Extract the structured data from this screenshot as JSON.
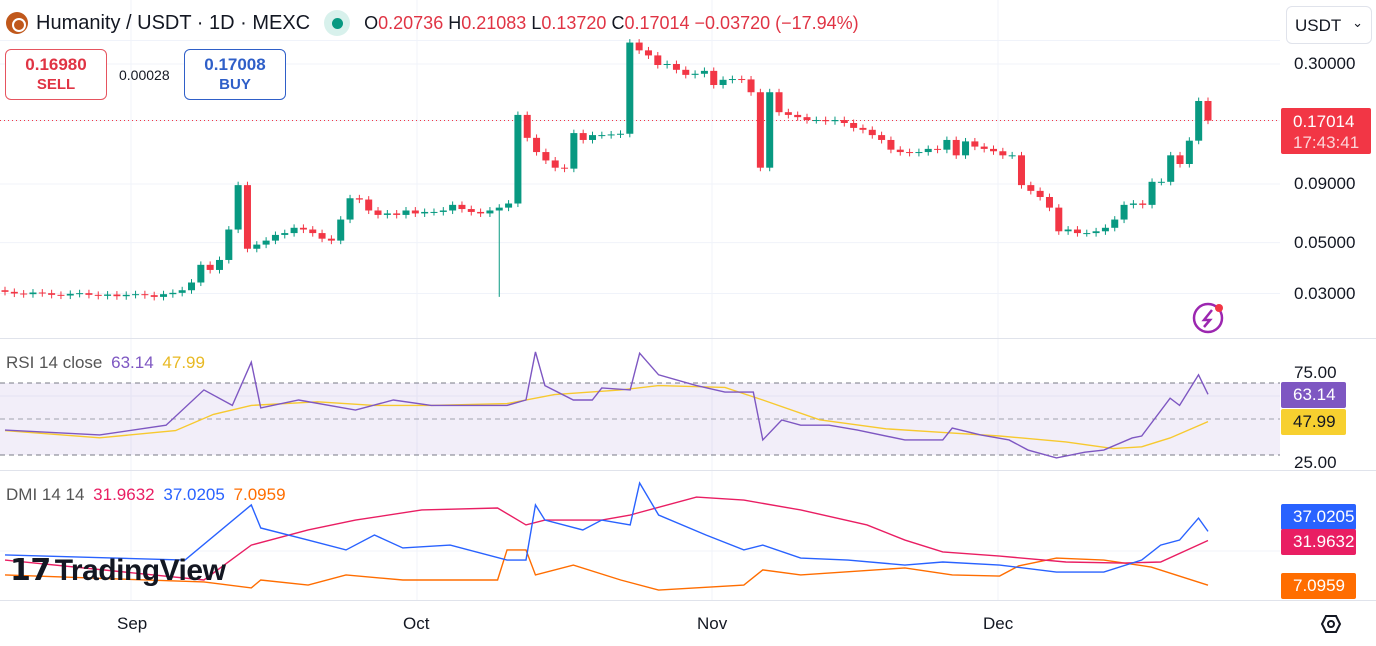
{
  "header": {
    "symbol": "Humanity / USDT · 1D · MEXC",
    "o_label": "O",
    "o": "0.20736",
    "h_label": "H",
    "h": "0.21083",
    "l_label": "L",
    "l": "0.13720",
    "c_label": "C",
    "c": "0.17014",
    "change": "−0.03720 (−17.94%)"
  },
  "trade": {
    "sell_price": "0.16980",
    "sell_label": "SELL",
    "spread": "0.00028",
    "buy_price": "0.17008",
    "buy_label": "BUY"
  },
  "currency_select": "USDT",
  "price_axis": [
    "0.30000",
    "0.09000",
    "0.05000",
    "0.03000"
  ],
  "last_price": {
    "price": "0.17014",
    "countdown": "17:43:41"
  },
  "rsi": {
    "label": "RSI 14 close",
    "value": "63.14",
    "ma": "47.99",
    "axis": [
      "75.00",
      "25.00"
    ]
  },
  "dmi": {
    "label": "DMI 14 14",
    "v1": "31.9632",
    "v2": "37.0205",
    "v3": "7.0959"
  },
  "time_axis": [
    "Sep",
    "Oct",
    "Nov",
    "Dec"
  ],
  "watermark": "TradingView",
  "colors": {
    "up": "#089981",
    "down": "#f23645",
    "rsi": "#7e57c2",
    "rsi_ma": "#f7c92f",
    "dmi1": "#e91e63",
    "dmi2": "#2962ff",
    "dmi3": "#ff6d00"
  },
  "chart_data": {
    "type": "candlestick",
    "title": "Humanity / USDT · 1D · MEXC",
    "y_scale": "log",
    "ylim": [
      0.022,
      0.42
    ],
    "first_open": 0.031,
    "closes": [
      0.0305,
      0.03,
      0.0298,
      0.0303,
      0.0301,
      0.0296,
      0.0294,
      0.0299,
      0.0301,
      0.0296,
      0.0293,
      0.0297,
      0.0292,
      0.0296,
      0.0298,
      0.0295,
      0.029,
      0.0298,
      0.0302,
      0.031,
      0.0335,
      0.04,
      0.038,
      0.042,
      0.057,
      0.089,
      0.047,
      0.049,
      0.051,
      0.054,
      0.055,
      0.058,
      0.057,
      0.055,
      0.052,
      0.051,
      0.063,
      0.078,
      0.077,
      0.069,
      0.066,
      0.067,
      0.066,
      0.069,
      0.067,
      0.068,
      0.068,
      0.069,
      0.073,
      0.07,
      0.068,
      0.067,
      0.069,
      0.071,
      0.074,
      0.18,
      0.143,
      0.124,
      0.114,
      0.106,
      0.105,
      0.15,
      0.14,
      0.147,
      0.147,
      0.148,
      0.149,
      0.372,
      0.344,
      0.327,
      0.297,
      0.3,
      0.283,
      0.269,
      0.272,
      0.28,
      0.243,
      0.256,
      0.258,
      0.257,
      0.226,
      0.106,
      0.226,
      0.185,
      0.18,
      0.176,
      0.171,
      0.171,
      0.169,
      0.171,
      0.166,
      0.158,
      0.155,
      0.147,
      0.14,
      0.127,
      0.124,
      0.123,
      0.124,
      0.128,
      0.127,
      0.14,
      0.12,
      0.138,
      0.131,
      0.128,
      0.125,
      0.12,
      0.12,
      0.089,
      0.084,
      0.079,
      0.071,
      0.056,
      0.057,
      0.055,
      0.055,
      0.056,
      0.058,
      0.063,
      0.073,
      0.074,
      0.073,
      0.092,
      0.092,
      0.12,
      0.11,
      0.139,
      0.207,
      0.17
    ],
    "x_labels": [
      "Sep",
      "Oct",
      "Nov",
      "Dec"
    ],
    "rsi": [
      [
        0,
        43.3
      ],
      [
        10,
        40.6
      ],
      [
        17,
        46
      ],
      [
        21,
        65.6
      ],
      [
        24,
        57
      ],
      [
        26,
        81
      ],
      [
        27,
        55.6
      ],
      [
        31,
        60
      ],
      [
        37,
        54.4
      ],
      [
        41,
        60
      ],
      [
        45,
        57
      ],
      [
        53,
        57
      ],
      [
        55,
        60
      ],
      [
        56,
        86.7
      ],
      [
        57,
        68
      ],
      [
        60,
        60
      ],
      [
        62,
        60
      ],
      [
        63,
        66.7
      ],
      [
        66,
        65.6
      ],
      [
        67,
        86
      ],
      [
        69,
        74
      ],
      [
        73,
        68
      ],
      [
        76,
        64.4
      ],
      [
        79,
        64.4
      ],
      [
        80,
        37.8
      ],
      [
        82,
        48.9
      ],
      [
        84,
        46
      ],
      [
        87,
        46
      ],
      [
        90,
        43.3
      ],
      [
        95,
        37.8
      ],
      [
        99,
        37.8
      ],
      [
        100,
        44.4
      ],
      [
        103,
        40.6
      ],
      [
        106,
        37.8
      ],
      [
        108,
        32.2
      ],
      [
        111,
        27.8
      ],
      [
        114,
        31
      ],
      [
        116,
        32.2
      ],
      [
        119,
        38.9
      ],
      [
        120,
        40
      ],
      [
        123,
        61
      ],
      [
        124,
        57
      ],
      [
        126,
        74
      ],
      [
        127,
        63.14
      ]
    ],
    "rsi_ma": [
      [
        0,
        43
      ],
      [
        10,
        39
      ],
      [
        18,
        43
      ],
      [
        22,
        52
      ],
      [
        26,
        57
      ],
      [
        33,
        59
      ],
      [
        39,
        57
      ],
      [
        45,
        57
      ],
      [
        53,
        58
      ],
      [
        58,
        63
      ],
      [
        65,
        65.6
      ],
      [
        69,
        68
      ],
      [
        76,
        67
      ],
      [
        80,
        60
      ],
      [
        86,
        49
      ],
      [
        93,
        44
      ],
      [
        99,
        42
      ],
      [
        105,
        40
      ],
      [
        112,
        36.7
      ],
      [
        117,
        33
      ],
      [
        120,
        34
      ],
      [
        123,
        38.9
      ],
      [
        127,
        47.99
      ]
    ],
    "rsi_bands": [
      30,
      50,
      70
    ],
    "dmi_red": [
      [
        0,
        21.1
      ],
      [
        21,
        10
      ],
      [
        26,
        29.4
      ],
      [
        32,
        37.8
      ],
      [
        37,
        43.3
      ],
      [
        44,
        48.9
      ],
      [
        52,
        50
      ],
      [
        55,
        40.6
      ],
      [
        57,
        43.3
      ],
      [
        63,
        43.3
      ],
      [
        66,
        46.1
      ],
      [
        73,
        56.1
      ],
      [
        78,
        54.4
      ],
      [
        84,
        48.9
      ],
      [
        91,
        40.6
      ],
      [
        95,
        32.2
      ],
      [
        99,
        25.6
      ],
      [
        105,
        23.3
      ],
      [
        112,
        20
      ],
      [
        118,
        19.4
      ],
      [
        122,
        20
      ],
      [
        127,
        31.96
      ]
    ],
    "dmi_blue": [
      [
        0,
        23.9
      ],
      [
        19,
        21.1
      ],
      [
        26,
        51.7
      ],
      [
        27,
        38.9
      ],
      [
        32,
        32.2
      ],
      [
        36,
        26.7
      ],
      [
        39,
        35
      ],
      [
        42,
        27.8
      ],
      [
        47,
        29.4
      ],
      [
        53,
        21.1
      ],
      [
        55,
        21.1
      ],
      [
        56,
        51.7
      ],
      [
        57,
        43.3
      ],
      [
        61,
        37.8
      ],
      [
        63,
        43.3
      ],
      [
        66,
        40.6
      ],
      [
        67,
        63.9
      ],
      [
        69,
        46.1
      ],
      [
        74,
        35
      ],
      [
        78,
        26.7
      ],
      [
        80,
        29.4
      ],
      [
        84,
        22.2
      ],
      [
        89,
        21.1
      ],
      [
        95,
        18.3
      ],
      [
        99,
        20
      ],
      [
        105,
        18.3
      ],
      [
        111,
        14.4
      ],
      [
        116,
        14.4
      ],
      [
        120,
        21.1
      ],
      [
        122,
        29.4
      ],
      [
        124,
        32.2
      ],
      [
        126,
        44.4
      ],
      [
        127,
        37.02
      ]
    ],
    "dmi_orange": [
      [
        0,
        12.8
      ],
      [
        21,
        8.9
      ],
      [
        26,
        5.6
      ],
      [
        27,
        10
      ],
      [
        32,
        7.2
      ],
      [
        36,
        12.8
      ],
      [
        42,
        10
      ],
      [
        52,
        10
      ],
      [
        53,
        26.7
      ],
      [
        55,
        26.7
      ],
      [
        56,
        12.8
      ],
      [
        60,
        18.3
      ],
      [
        65,
        10
      ],
      [
        69,
        4.4
      ],
      [
        78,
        7.2
      ],
      [
        80,
        15.6
      ],
      [
        84,
        12.8
      ],
      [
        95,
        16.7
      ],
      [
        100,
        12.8
      ],
      [
        105,
        12.2
      ],
      [
        107,
        17.8
      ],
      [
        111,
        22.2
      ],
      [
        116,
        21.1
      ],
      [
        121,
        17.2
      ],
      [
        127,
        7.1
      ]
    ]
  }
}
